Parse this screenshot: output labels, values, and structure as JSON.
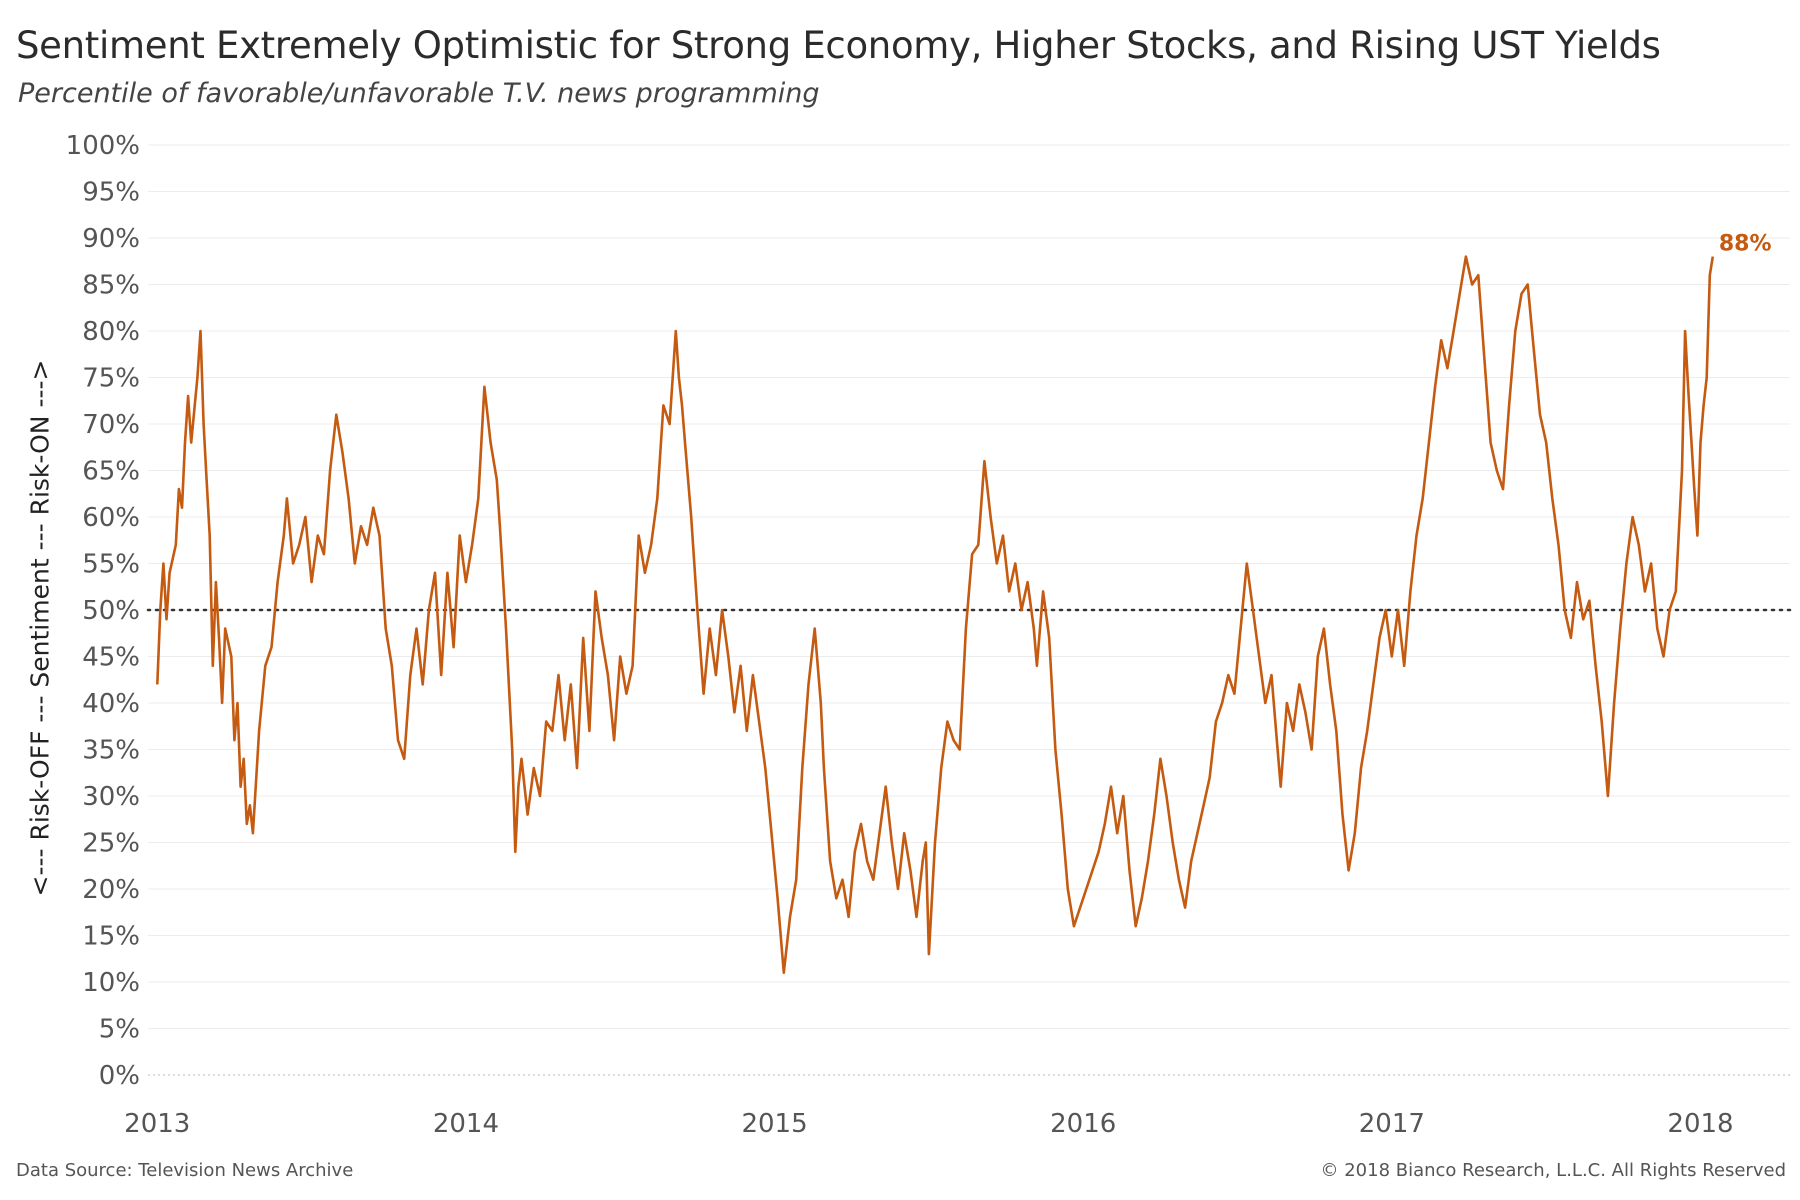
{
  "title": "Sentiment Extremely Optimistic for Strong Economy, Higher Stocks, and Rising UST Yields",
  "subtitle": "Percentile of favorable/unfavorable T.V. news programming",
  "footer": {
    "source": "Data Source: Television News Archive",
    "copyright": "© 2018 Bianco Research, L.L.C. All Rights Reserved"
  },
  "colors": {
    "line": "#c55a11",
    "grid": "#ececec",
    "reference": "#333333"
  },
  "chart_data": {
    "type": "line",
    "title": "Sentiment Extremely Optimistic for Strong Economy, Higher Stocks, and Rising UST Yields",
    "subtitle": "Percentile of favorable/unfavorable T.V. news programming",
    "ylabel": "<--- Risk-OFF --- Sentiment --- Risk-ON --->",
    "xlabel": "",
    "x_tick_labels": [
      "2013",
      "2014",
      "2015",
      "2016",
      "2017",
      "2018"
    ],
    "y_tick_labels": [
      "0%",
      "5%",
      "10%",
      "15%",
      "20%",
      "25%",
      "30%",
      "35%",
      "40%",
      "45%",
      "50%",
      "55%",
      "60%",
      "65%",
      "70%",
      "75%",
      "80%",
      "85%",
      "90%",
      "95%",
      "100%"
    ],
    "xlim": [
      2012.97,
      2018.29
    ],
    "ylim": [
      0,
      100
    ],
    "reference_line": {
      "y": 50,
      "style": "dotted"
    },
    "grid": "horizontal",
    "annotation": {
      "text": "88%",
      "x": 2018.04,
      "y": 88
    },
    "series": [
      {
        "values": [
          [
            2013.0,
            42
          ],
          [
            2013.01,
            50
          ],
          [
            2013.02,
            55
          ],
          [
            2013.03,
            49
          ],
          [
            2013.04,
            54
          ],
          [
            2013.06,
            57
          ],
          [
            2013.07,
            63
          ],
          [
            2013.08,
            61
          ],
          [
            2013.09,
            68
          ],
          [
            2013.1,
            73
          ],
          [
            2013.11,
            68
          ],
          [
            2013.13,
            75
          ],
          [
            2013.14,
            80
          ],
          [
            2013.15,
            70
          ],
          [
            2013.16,
            64
          ],
          [
            2013.17,
            58
          ],
          [
            2013.18,
            44
          ],
          [
            2013.19,
            53
          ],
          [
            2013.2,
            47
          ],
          [
            2013.21,
            40
          ],
          [
            2013.22,
            48
          ],
          [
            2013.24,
            45
          ],
          [
            2013.25,
            36
          ],
          [
            2013.26,
            40
          ],
          [
            2013.27,
            31
          ],
          [
            2013.28,
            34
          ],
          [
            2013.29,
            27
          ],
          [
            2013.3,
            29
          ],
          [
            2013.31,
            26
          ],
          [
            2013.33,
            37
          ],
          [
            2013.35,
            44
          ],
          [
            2013.37,
            46
          ],
          [
            2013.39,
            53
          ],
          [
            2013.41,
            58
          ],
          [
            2013.42,
            62
          ],
          [
            2013.44,
            55
          ],
          [
            2013.46,
            57
          ],
          [
            2013.48,
            60
          ],
          [
            2013.5,
            53
          ],
          [
            2013.52,
            58
          ],
          [
            2013.54,
            56
          ],
          [
            2013.56,
            65
          ],
          [
            2013.58,
            71
          ],
          [
            2013.6,
            67
          ],
          [
            2013.62,
            62
          ],
          [
            2013.64,
            55
          ],
          [
            2013.66,
            59
          ],
          [
            2013.68,
            57
          ],
          [
            2013.7,
            61
          ],
          [
            2013.72,
            58
          ],
          [
            2013.74,
            48
          ],
          [
            2013.76,
            44
          ],
          [
            2013.78,
            36
          ],
          [
            2013.8,
            34
          ],
          [
            2013.82,
            43
          ],
          [
            2013.84,
            48
          ],
          [
            2013.86,
            42
          ],
          [
            2013.88,
            50
          ],
          [
            2013.9,
            54
          ],
          [
            2013.92,
            43
          ],
          [
            2013.94,
            54
          ],
          [
            2013.96,
            46
          ],
          [
            2013.98,
            58
          ],
          [
            2014.0,
            53
          ],
          [
            2014.02,
            57
          ],
          [
            2014.04,
            62
          ],
          [
            2014.06,
            74
          ],
          [
            2014.08,
            68
          ],
          [
            2014.1,
            64
          ],
          [
            2014.11,
            59
          ],
          [
            2014.13,
            48
          ],
          [
            2014.15,
            35
          ],
          [
            2014.16,
            24
          ],
          [
            2014.17,
            31
          ],
          [
            2014.18,
            34
          ],
          [
            2014.2,
            28
          ],
          [
            2014.22,
            33
          ],
          [
            2014.24,
            30
          ],
          [
            2014.26,
            38
          ],
          [
            2014.28,
            37
          ],
          [
            2014.3,
            43
          ],
          [
            2014.32,
            36
          ],
          [
            2014.34,
            42
          ],
          [
            2014.36,
            33
          ],
          [
            2014.38,
            47
          ],
          [
            2014.4,
            37
          ],
          [
            2014.42,
            52
          ],
          [
            2014.44,
            47
          ],
          [
            2014.46,
            43
          ],
          [
            2014.48,
            36
          ],
          [
            2014.5,
            45
          ],
          [
            2014.52,
            41
          ],
          [
            2014.54,
            44
          ],
          [
            2014.56,
            58
          ],
          [
            2014.58,
            54
          ],
          [
            2014.6,
            57
          ],
          [
            2014.62,
            62
          ],
          [
            2014.64,
            72
          ],
          [
            2014.66,
            70
          ],
          [
            2014.68,
            80
          ],
          [
            2014.69,
            75
          ],
          [
            2014.7,
            72
          ],
          [
            2014.71,
            68
          ],
          [
            2014.73,
            60
          ],
          [
            2014.75,
            50
          ],
          [
            2014.77,
            41
          ],
          [
            2014.79,
            48
          ],
          [
            2014.81,
            43
          ],
          [
            2014.83,
            50
          ],
          [
            2014.85,
            45
          ],
          [
            2014.87,
            39
          ],
          [
            2014.89,
            44
          ],
          [
            2014.91,
            37
          ],
          [
            2014.93,
            43
          ],
          [
            2014.95,
            38
          ],
          [
            2014.97,
            33
          ],
          [
            2014.99,
            26
          ],
          [
            2015.01,
            19
          ],
          [
            2015.02,
            15
          ],
          [
            2015.03,
            11
          ],
          [
            2015.05,
            17
          ],
          [
            2015.07,
            21
          ],
          [
            2015.09,
            33
          ],
          [
            2015.11,
            42
          ],
          [
            2015.13,
            48
          ],
          [
            2015.15,
            40
          ],
          [
            2015.16,
            33
          ],
          [
            2015.18,
            23
          ],
          [
            2015.2,
            19
          ],
          [
            2015.22,
            21
          ],
          [
            2015.24,
            17
          ],
          [
            2015.26,
            24
          ],
          [
            2015.28,
            27
          ],
          [
            2015.3,
            23
          ],
          [
            2015.32,
            21
          ],
          [
            2015.34,
            26
          ],
          [
            2015.36,
            31
          ],
          [
            2015.38,
            25
          ],
          [
            2015.4,
            20
          ],
          [
            2015.42,
            26
          ],
          [
            2015.44,
            22
          ],
          [
            2015.46,
            17
          ],
          [
            2015.48,
            23
          ],
          [
            2015.49,
            25
          ],
          [
            2015.5,
            13
          ],
          [
            2015.52,
            25
          ],
          [
            2015.54,
            33
          ],
          [
            2015.56,
            38
          ],
          [
            2015.58,
            36
          ],
          [
            2015.6,
            35
          ],
          [
            2015.62,
            48
          ],
          [
            2015.64,
            56
          ],
          [
            2015.66,
            57
          ],
          [
            2015.68,
            66
          ],
          [
            2015.7,
            60
          ],
          [
            2015.72,
            55
          ],
          [
            2015.74,
            58
          ],
          [
            2015.76,
            52
          ],
          [
            2015.78,
            55
          ],
          [
            2015.8,
            50
          ],
          [
            2015.82,
            53
          ],
          [
            2015.84,
            48
          ],
          [
            2015.85,
            44
          ],
          [
            2015.87,
            52
          ],
          [
            2015.89,
            47
          ],
          [
            2015.91,
            35
          ],
          [
            2015.93,
            28
          ],
          [
            2015.95,
            20
          ],
          [
            2015.97,
            16
          ],
          [
            2015.99,
            18
          ],
          [
            2016.01,
            20
          ],
          [
            2016.03,
            22
          ],
          [
            2016.05,
            24
          ],
          [
            2016.07,
            27
          ],
          [
            2016.09,
            31
          ],
          [
            2016.11,
            26
          ],
          [
            2016.13,
            30
          ],
          [
            2016.15,
            22
          ],
          [
            2016.17,
            16
          ],
          [
            2016.19,
            19
          ],
          [
            2016.21,
            23
          ],
          [
            2016.23,
            28
          ],
          [
            2016.25,
            34
          ],
          [
            2016.27,
            30
          ],
          [
            2016.29,
            25
          ],
          [
            2016.31,
            21
          ],
          [
            2016.33,
            18
          ],
          [
            2016.35,
            23
          ],
          [
            2016.37,
            26
          ],
          [
            2016.39,
            29
          ],
          [
            2016.41,
            32
          ],
          [
            2016.43,
            38
          ],
          [
            2016.45,
            40
          ],
          [
            2016.47,
            43
          ],
          [
            2016.49,
            41
          ],
          [
            2016.51,
            48
          ],
          [
            2016.53,
            55
          ],
          [
            2016.55,
            50
          ],
          [
            2016.57,
            45
          ],
          [
            2016.59,
            40
          ],
          [
            2016.61,
            43
          ],
          [
            2016.63,
            35
          ],
          [
            2016.64,
            31
          ],
          [
            2016.66,
            40
          ],
          [
            2016.68,
            37
          ],
          [
            2016.7,
            42
          ],
          [
            2016.72,
            39
          ],
          [
            2016.74,
            35
          ],
          [
            2016.76,
            45
          ],
          [
            2016.78,
            48
          ],
          [
            2016.8,
            42
          ],
          [
            2016.82,
            37
          ],
          [
            2016.84,
            28
          ],
          [
            2016.86,
            22
          ],
          [
            2016.88,
            26
          ],
          [
            2016.9,
            33
          ],
          [
            2016.92,
            37
          ],
          [
            2016.94,
            42
          ],
          [
            2016.96,
            47
          ],
          [
            2016.98,
            50
          ],
          [
            2017.0,
            45
          ],
          [
            2017.02,
            50
          ],
          [
            2017.04,
            44
          ],
          [
            2017.06,
            52
          ],
          [
            2017.08,
            58
          ],
          [
            2017.1,
            62
          ],
          [
            2017.12,
            68
          ],
          [
            2017.14,
            74
          ],
          [
            2017.16,
            79
          ],
          [
            2017.18,
            76
          ],
          [
            2017.2,
            80
          ],
          [
            2017.22,
            84
          ],
          [
            2017.24,
            88
          ],
          [
            2017.26,
            85
          ],
          [
            2017.28,
            86
          ],
          [
            2017.3,
            77
          ],
          [
            2017.32,
            68
          ],
          [
            2017.34,
            65
          ],
          [
            2017.36,
            63
          ],
          [
            2017.38,
            72
          ],
          [
            2017.4,
            80
          ],
          [
            2017.42,
            84
          ],
          [
            2017.44,
            85
          ],
          [
            2017.46,
            78
          ],
          [
            2017.48,
            71
          ],
          [
            2017.5,
            68
          ],
          [
            2017.52,
            62
          ],
          [
            2017.54,
            57
          ],
          [
            2017.56,
            50
          ],
          [
            2017.58,
            47
          ],
          [
            2017.6,
            53
          ],
          [
            2017.62,
            49
          ],
          [
            2017.64,
            51
          ],
          [
            2017.66,
            44
          ],
          [
            2017.68,
            38
          ],
          [
            2017.7,
            30
          ],
          [
            2017.72,
            40
          ],
          [
            2017.74,
            48
          ],
          [
            2017.76,
            55
          ],
          [
            2017.78,
            60
          ],
          [
            2017.8,
            57
          ],
          [
            2017.82,
            52
          ],
          [
            2017.84,
            55
          ],
          [
            2017.86,
            48
          ],
          [
            2017.88,
            45
          ],
          [
            2017.9,
            50
          ],
          [
            2017.92,
            52
          ],
          [
            2017.94,
            65
          ],
          [
            2017.95,
            80
          ],
          [
            2017.96,
            74
          ],
          [
            2017.98,
            63
          ],
          [
            2017.99,
            58
          ],
          [
            2018.0,
            68
          ],
          [
            2018.01,
            72
          ],
          [
            2018.02,
            75
          ],
          [
            2018.03,
            86
          ],
          [
            2018.04,
            88
          ]
        ]
      }
    ]
  }
}
